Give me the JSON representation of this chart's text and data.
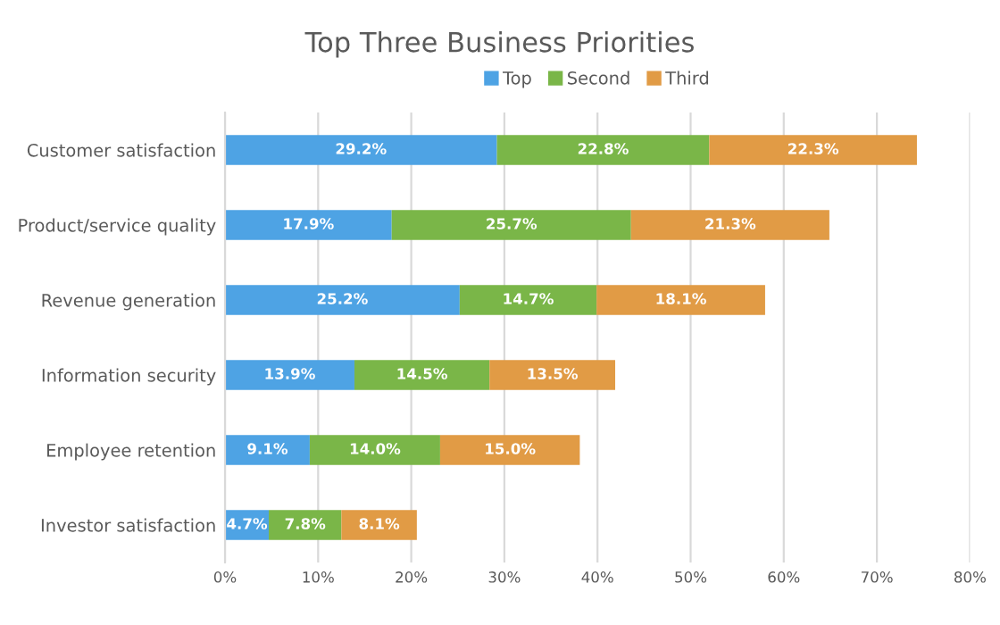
{
  "chart_data": {
    "type": "bar",
    "orientation": "horizontal",
    "stacked": true,
    "title": "Top Three Business Priorities",
    "categories": [
      "Customer satisfaction",
      "Product/service quality",
      "Revenue generation",
      "Information security",
      "Employee retention",
      "Investor satisfaction"
    ],
    "series": [
      {
        "name": "Top",
        "color": "#4ea3e4",
        "values": [
          29.2,
          17.9,
          25.2,
          13.9,
          9.1,
          4.7
        ],
        "value_labels": [
          "29.2%",
          "17.9%",
          "25.2%",
          "13.9%",
          "9.1%",
          "4.7%"
        ]
      },
      {
        "name": "Second",
        "color": "#7ab648",
        "values": [
          22.8,
          25.7,
          14.7,
          14.5,
          14.0,
          7.8
        ],
        "value_labels": [
          "22.8%",
          "25.7%",
          "14.7%",
          "14.5%",
          "14.0%",
          "7.8%"
        ]
      },
      {
        "name": "Third",
        "color": "#e19b45",
        "values": [
          22.3,
          21.3,
          18.1,
          13.5,
          15.0,
          8.1
        ],
        "value_labels": [
          "22.3%",
          "21.3%",
          "18.1%",
          "13.5%",
          "15.0%",
          "8.1%"
        ]
      }
    ],
    "xlim": [
      0,
      80
    ],
    "xticks": [
      {
        "value": 0,
        "label": "0%"
      },
      {
        "value": 10,
        "label": "10%"
      },
      {
        "value": 20,
        "label": "20%"
      },
      {
        "value": 30,
        "label": "30%"
      },
      {
        "value": 40,
        "label": "40%"
      },
      {
        "value": 50,
        "label": "50%"
      },
      {
        "value": 60,
        "label": "60%"
      },
      {
        "value": 70,
        "label": "70%"
      },
      {
        "value": 80,
        "label": "80%"
      }
    ],
    "grid": "x",
    "legend": "top"
  }
}
